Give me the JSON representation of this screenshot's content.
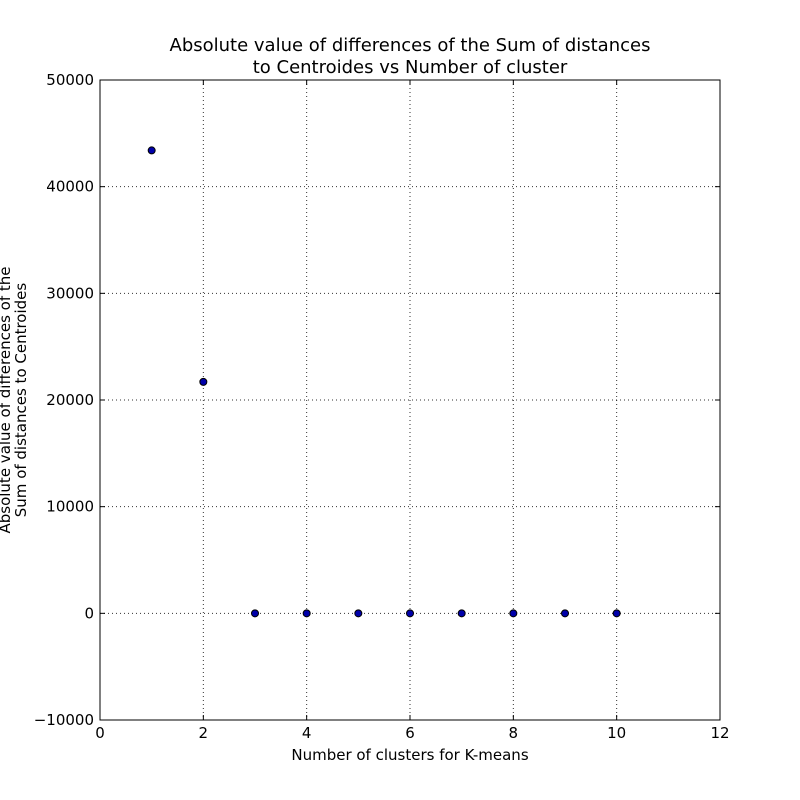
{
  "chart_data": {
    "type": "scatter",
    "title": [
      "Absolute value of differences of the Sum of distances",
      "to Centroides vs Number of cluster"
    ],
    "xlabel": "Number of clusters for K-means",
    "ylabel": [
      "Absolute value of differences of the",
      "Sum of distances to Centroides"
    ],
    "xlim": [
      0,
      12
    ],
    "ylim": [
      -10000,
      50000
    ],
    "xticks": [
      0,
      2,
      4,
      6,
      8,
      10,
      12
    ],
    "xtick_labels": [
      "0",
      "2",
      "4",
      "6",
      "8",
      "10",
      "12"
    ],
    "yticks": [
      -10000,
      0,
      10000,
      20000,
      30000,
      40000,
      50000
    ],
    "ytick_labels": [
      "−10000",
      "0",
      "10000",
      "20000",
      "30000",
      "40000",
      "50000"
    ],
    "grid": true,
    "marker_color": "#0000aa",
    "series": [
      {
        "x": [
          1,
          2,
          3,
          4,
          5,
          6,
          7,
          8,
          9,
          10
        ],
        "y": [
          43400,
          21700,
          0,
          0,
          0,
          0,
          0,
          0,
          0,
          0
        ]
      }
    ]
  }
}
